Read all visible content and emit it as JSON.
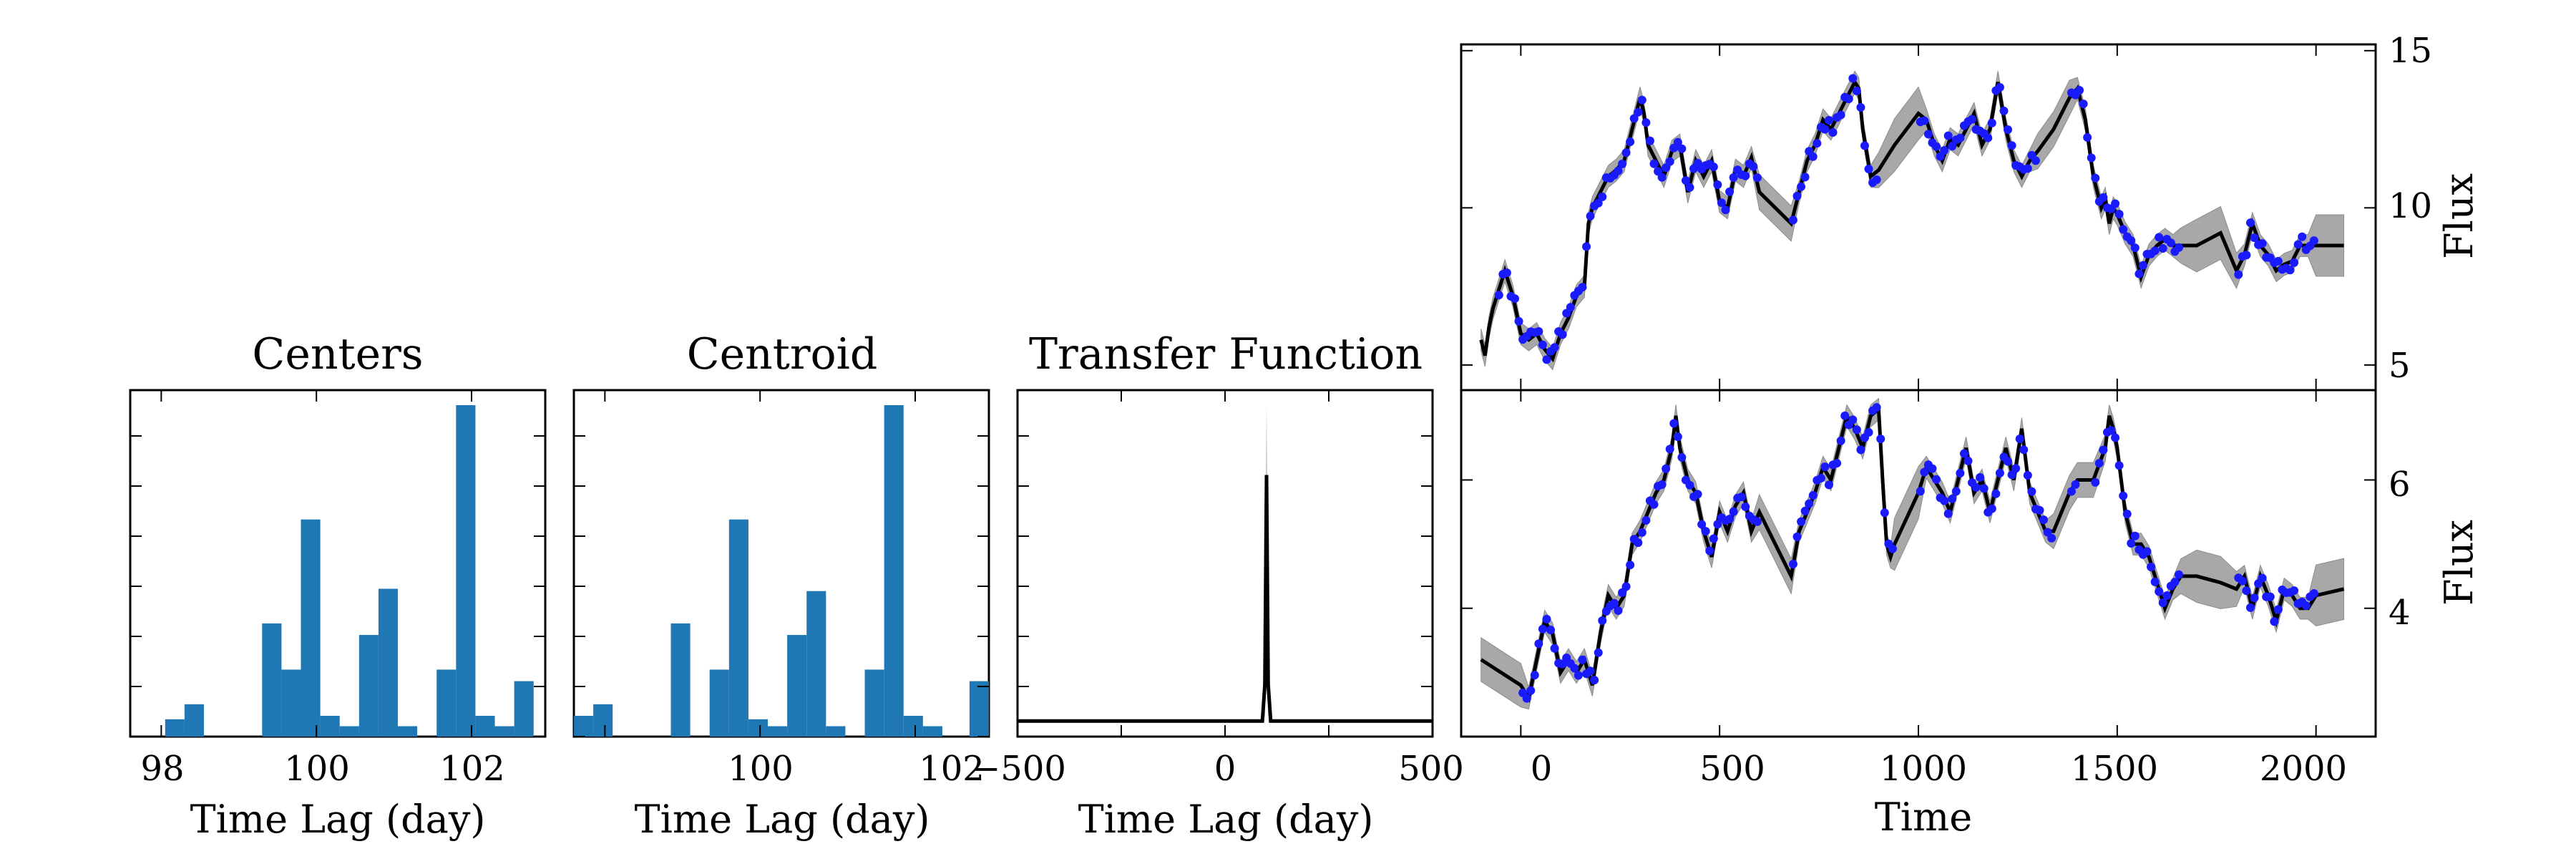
{
  "chart_data": [
    {
      "type": "bar",
      "panel": "centers",
      "title": "Centers",
      "xlabel": "Time Lag (day)",
      "xlim": [
        97.6,
        102.95
      ],
      "ylim": [
        0,
        30
      ],
      "xticks": [
        "98",
        "100",
        "102"
      ],
      "bins": [
        {
          "x0": 98.05,
          "x1": 98.3,
          "count": 1.5
        },
        {
          "x0": 98.3,
          "x1": 98.55,
          "count": 2.8
        },
        {
          "x0": 99.3,
          "x1": 99.55,
          "count": 9.8
        },
        {
          "x0": 99.55,
          "x1": 99.8,
          "count": 5.8
        },
        {
          "x0": 99.8,
          "x1": 100.05,
          "count": 18.8
        },
        {
          "x0": 100.05,
          "x1": 100.3,
          "count": 1.8
        },
        {
          "x0": 100.3,
          "x1": 100.55,
          "count": 0.9
        },
        {
          "x0": 100.55,
          "x1": 100.8,
          "count": 8.8
        },
        {
          "x0": 100.8,
          "x1": 101.05,
          "count": 12.8
        },
        {
          "x0": 101.05,
          "x1": 101.3,
          "count": 0.9
        },
        {
          "x0": 101.55,
          "x1": 101.8,
          "count": 5.8
        },
        {
          "x0": 101.8,
          "x1": 102.05,
          "count": 28.7
        },
        {
          "x0": 102.05,
          "x1": 102.3,
          "count": 1.8
        },
        {
          "x0": 102.3,
          "x1": 102.55,
          "count": 0.9
        },
        {
          "x0": 102.55,
          "x1": 102.8,
          "count": 4.8
        }
      ]
    },
    {
      "type": "bar",
      "panel": "centroid",
      "title": "Centroid",
      "xlabel": "Time Lag (day)",
      "xlim": [
        97.6,
        102.95
      ],
      "ylim": [
        0,
        30
      ],
      "xticks": [
        "100",
        "102"
      ],
      "bins": [
        {
          "x0": 97.6,
          "x1": 97.85,
          "count": 1.8
        },
        {
          "x0": 97.85,
          "x1": 98.1,
          "count": 2.8
        },
        {
          "x0": 98.85,
          "x1": 99.1,
          "count": 9.8
        },
        {
          "x0": 99.35,
          "x1": 99.6,
          "count": 5.8
        },
        {
          "x0": 99.6,
          "x1": 99.85,
          "count": 18.8
        },
        {
          "x0": 99.85,
          "x1": 100.1,
          "count": 1.5
        },
        {
          "x0": 100.1,
          "x1": 100.35,
          "count": 0.9
        },
        {
          "x0": 100.35,
          "x1": 100.6,
          "count": 8.8
        },
        {
          "x0": 100.6,
          "x1": 100.85,
          "count": 12.6
        },
        {
          "x0": 100.85,
          "x1": 101.1,
          "count": 0.9
        },
        {
          "x0": 101.35,
          "x1": 101.6,
          "count": 5.8
        },
        {
          "x0": 101.6,
          "x1": 101.85,
          "count": 28.7
        },
        {
          "x0": 101.85,
          "x1": 102.1,
          "count": 1.8
        },
        {
          "x0": 102.1,
          "x1": 102.35,
          "count": 0.9
        },
        {
          "x0": 102.7,
          "x1": 102.95,
          "count": 4.8
        }
      ]
    },
    {
      "type": "line",
      "panel": "transfer",
      "title": "Transfer Function",
      "xlabel": "Time Lag (day)",
      "xlim": [
        -500,
        500
      ],
      "ylim": [
        0,
        1
      ],
      "xticks": [
        "−500",
        "0",
        "500"
      ],
      "line": {
        "x": [
          -500,
          90,
          96,
          100,
          104,
          110,
          500
        ],
        "y": [
          0.045,
          0.045,
          0.15,
          0.755,
          0.15,
          0.045,
          0.045
        ]
      },
      "band": {
        "x": [
          -500,
          90,
          96,
          100,
          104,
          110,
          500
        ],
        "upper": [
          0.05,
          0.05,
          0.3,
          0.96,
          0.3,
          0.05,
          0.05
        ],
        "lower": [
          0.04,
          0.04,
          0.06,
          0.45,
          0.06,
          0.04,
          0.04
        ]
      }
    },
    {
      "type": "line",
      "panel": "lightcurve_top",
      "ylabel": "Flux",
      "xlim": [
        -150,
        2150
      ],
      "ylim": [
        4.2,
        15.2
      ],
      "yticks": [
        "5",
        "10",
        "15"
      ],
      "model": {
        "x": [
          -100,
          -90,
          -80,
          -70,
          -60,
          -40,
          -20,
          0,
          20,
          40,
          60,
          80,
          100,
          120,
          140,
          160,
          170,
          180,
          200,
          220,
          240,
          260,
          280,
          300,
          310,
          320,
          340,
          360,
          380,
          400,
          420,
          440,
          460,
          480,
          500,
          520,
          540,
          560,
          580,
          600,
          640,
          680,
          700,
          720,
          740,
          760,
          780,
          800,
          820,
          840,
          850,
          860,
          880,
          900,
          940,
          1000,
          1020,
          1040,
          1060,
          1080,
          1100,
          1120,
          1140,
          1160,
          1180,
          1200,
          1220,
          1240,
          1260,
          1280,
          1300,
          1340,
          1380,
          1400,
          1420,
          1440,
          1460,
          1470,
          1480,
          1490,
          1500,
          1520,
          1540,
          1560,
          1580,
          1600,
          1620,
          1640,
          1660,
          1700,
          1760,
          1800,
          1820,
          1840,
          1860,
          1880,
          1900,
          1920,
          1940,
          1960,
          1980,
          2000,
          2070
        ],
        "y": [
          5.8,
          5.3,
          6.2,
          6.8,
          7.2,
          8.0,
          7.2,
          6.0,
          5.8,
          6.0,
          5.5,
          5.2,
          6.0,
          6.5,
          7.2,
          7.5,
          9.5,
          10.0,
          10.5,
          11.0,
          11.2,
          11.5,
          12.5,
          13.5,
          13.0,
          12.0,
          11.5,
          11.0,
          11.8,
          12.0,
          10.5,
          11.5,
          11.0,
          11.5,
          10.2,
          10.0,
          11.2,
          11.0,
          11.6,
          10.5,
          10.0,
          9.5,
          10.5,
          11.5,
          12.0,
          12.8,
          12.5,
          13.0,
          13.5,
          14.0,
          13.8,
          12.5,
          11.0,
          11.2,
          12.0,
          13.0,
          12.8,
          12.0,
          11.5,
          12.2,
          12.0,
          12.5,
          13.0,
          12.0,
          12.5,
          14.0,
          12.5,
          11.5,
          11.0,
          11.5,
          11.8,
          12.5,
          13.5,
          13.8,
          12.8,
          11.0,
          10.0,
          10.3,
          9.5,
          10.0,
          9.8,
          9.2,
          8.8,
          7.8,
          8.5,
          8.8,
          9.0,
          8.8,
          8.8,
          8.8,
          9.2,
          8.0,
          8.5,
          9.5,
          8.8,
          8.5,
          8.0,
          8.2,
          8.3,
          8.8,
          8.8,
          8.8,
          8.8
        ]
      }
    },
    {
      "type": "line",
      "panel": "lightcurve_bottom",
      "xlabel": "Time",
      "ylabel": "Flux",
      "xlim": [
        -150,
        2150
      ],
      "ylim": [
        2.0,
        7.4
      ],
      "xticks": [
        "0",
        "500",
        "1000",
        "1500",
        "2000"
      ],
      "yticks": [
        "4",
        "6"
      ],
      "model": {
        "x": [
          -100,
          -50,
          0,
          20,
          40,
          60,
          80,
          100,
          120,
          140,
          160,
          180,
          200,
          220,
          240,
          260,
          280,
          300,
          320,
          340,
          360,
          380,
          390,
          400,
          420,
          440,
          460,
          480,
          500,
          520,
          540,
          560,
          580,
          600,
          640,
          680,
          700,
          720,
          740,
          760,
          780,
          800,
          820,
          840,
          860,
          880,
          900,
          910,
          920,
          930,
          940,
          1000,
          1020,
          1040,
          1060,
          1080,
          1100,
          1120,
          1140,
          1160,
          1180,
          1200,
          1220,
          1240,
          1260,
          1280,
          1300,
          1320,
          1340,
          1380,
          1400,
          1440,
          1470,
          1480,
          1490,
          1500,
          1520,
          1540,
          1560,
          1580,
          1600,
          1620,
          1640,
          1660,
          1700,
          1760,
          1800,
          1820,
          1840,
          1860,
          1880,
          1900,
          1920,
          1940,
          1960,
          1980,
          2000,
          2070
        ],
        "y": [
          3.2,
          3.0,
          2.8,
          2.6,
          3.2,
          3.8,
          3.6,
          3.0,
          3.2,
          3.0,
          3.2,
          2.8,
          3.6,
          4.2,
          4.0,
          4.2,
          5.0,
          5.2,
          5.5,
          5.8,
          6.0,
          6.5,
          7.0,
          6.5,
          6.0,
          5.8,
          5.2,
          4.8,
          5.5,
          5.2,
          5.6,
          5.8,
          5.2,
          5.5,
          5.0,
          4.5,
          5.2,
          5.5,
          5.8,
          6.2,
          6.0,
          6.5,
          7.0,
          6.8,
          6.5,
          7.0,
          7.1,
          6.0,
          5.0,
          4.8,
          5.0,
          5.8,
          6.2,
          6.0,
          5.8,
          5.5,
          6.0,
          6.5,
          5.8,
          6.0,
          5.5,
          6.0,
          6.5,
          6.0,
          6.8,
          5.8,
          5.5,
          5.2,
          5.2,
          5.8,
          6.0,
          6.0,
          6.5,
          7.0,
          6.8,
          6.5,
          5.5,
          5.0,
          5.0,
          4.8,
          4.4,
          4.0,
          4.3,
          4.5,
          4.5,
          4.4,
          4.3,
          4.5,
          4.0,
          4.5,
          4.2,
          3.8,
          4.3,
          4.2,
          4.0,
          4.0,
          4.2,
          4.3
        ]
      }
    }
  ]
}
